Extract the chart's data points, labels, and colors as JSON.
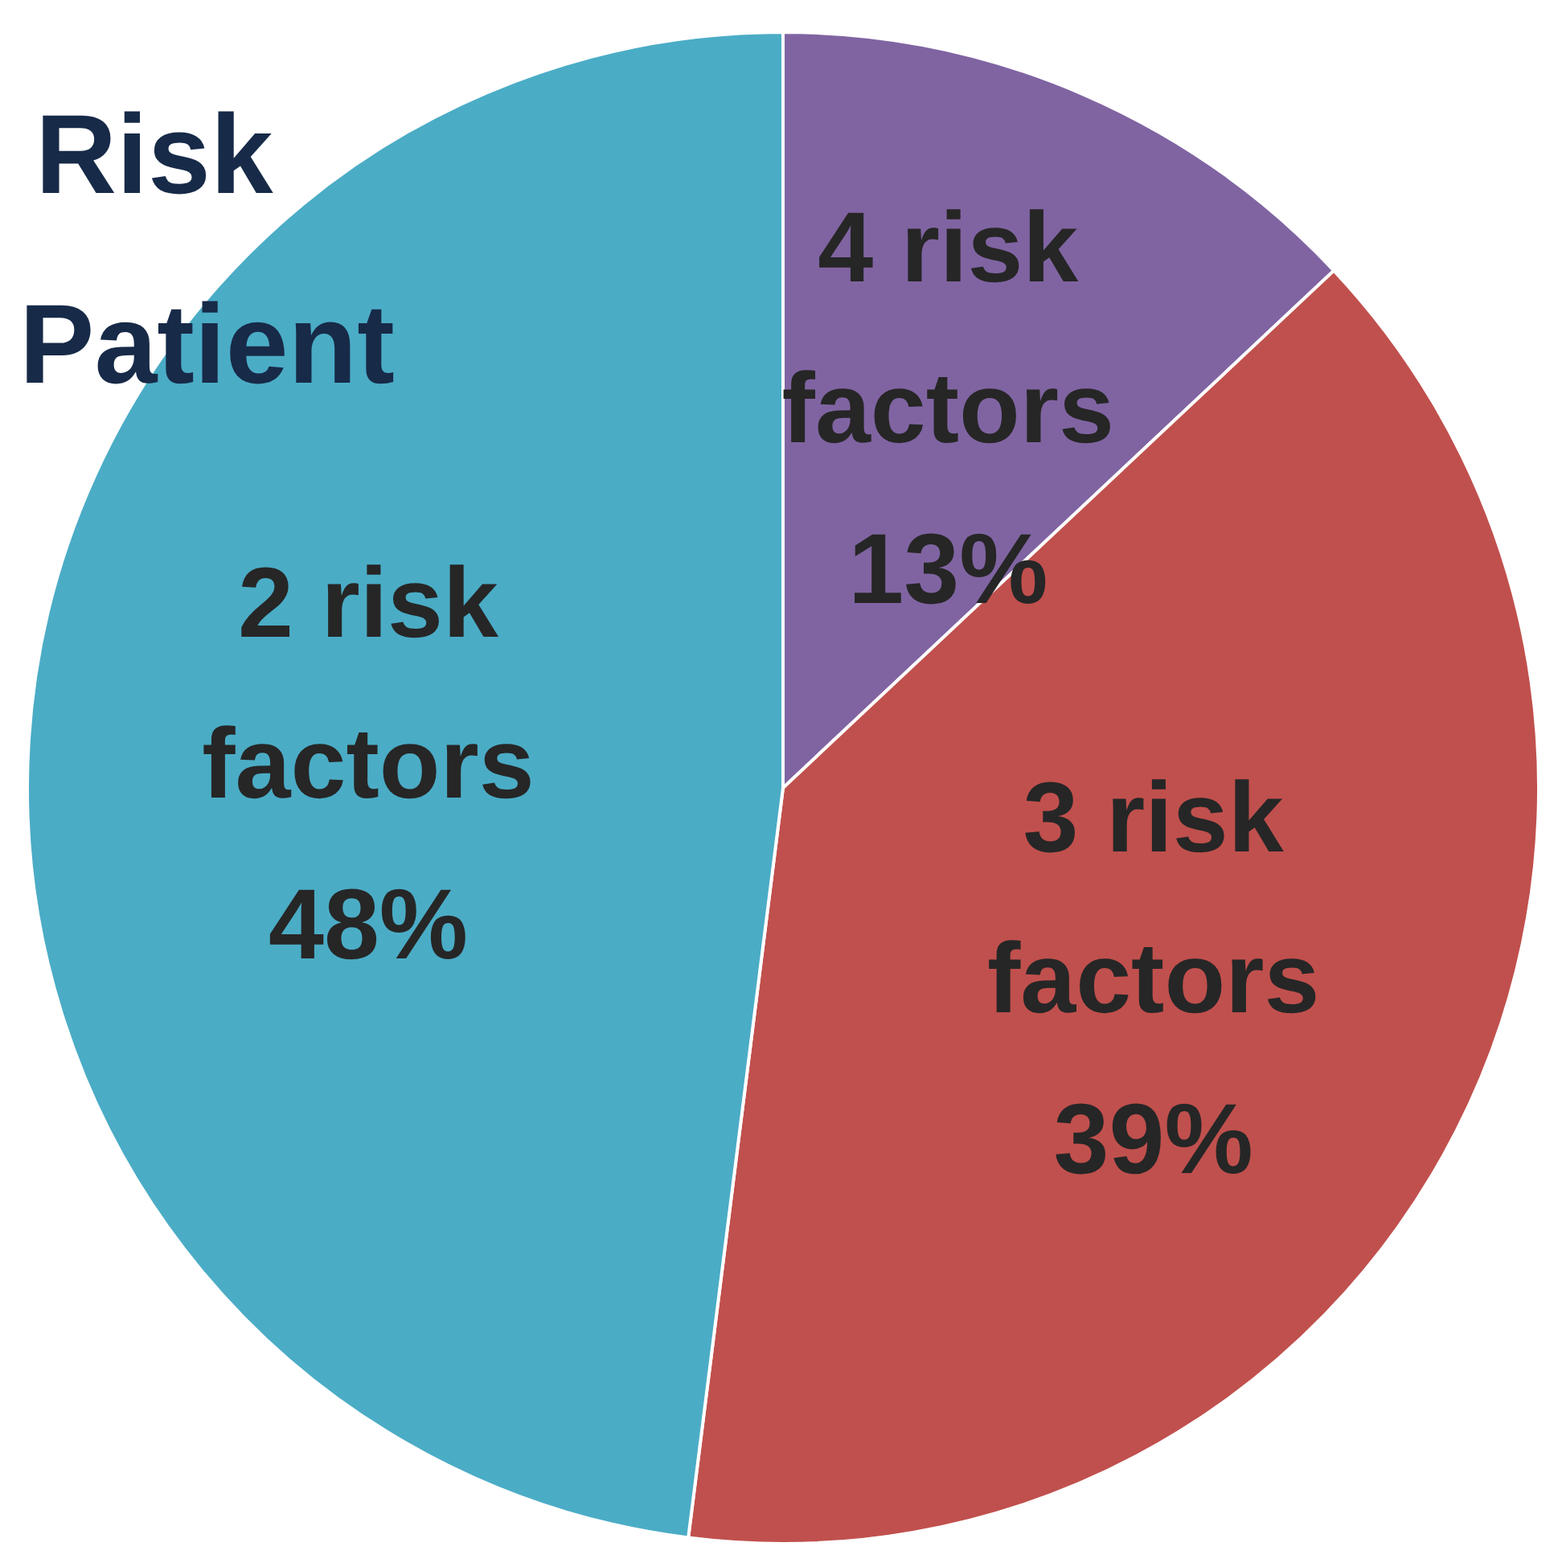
{
  "chart_data": {
    "type": "pie",
    "title": "Risk Patient",
    "categories": [
      "4 risk factors",
      "3 risk factors",
      "2 risk factors"
    ],
    "values": [
      13,
      39,
      48
    ],
    "colors": [
      "#8064a2",
      "#c0504d",
      "#4bacc6"
    ],
    "value_labels": [
      "13%",
      "39%",
      "48%"
    ]
  }
}
